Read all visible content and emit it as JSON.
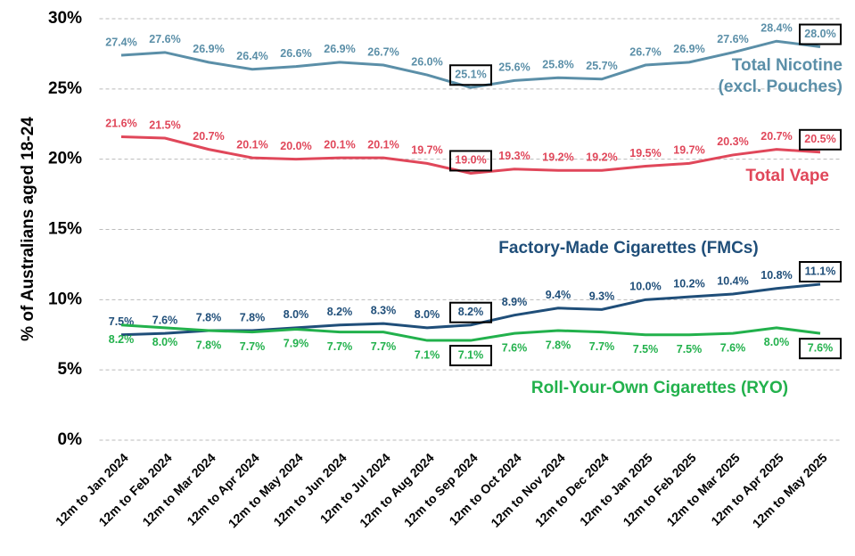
{
  "chart_data": {
    "type": "line",
    "ylabel": "% of Australians aged 18-24",
    "categories": [
      "12m to Jan 2024",
      "12m to Feb 2024",
      "12m to Mar 2024",
      "12m to Apr 2024",
      "12m to May 2024",
      "12m to Jun 2024",
      "12m to Jul 2024",
      "12m to Aug 2024",
      "12m to Sep 2024",
      "12m to Oct 2024",
      "12m to Nov 2024",
      "12m to Dec 2024",
      "12m to Jan 2025",
      "12m to Feb 2025",
      "12m to Mar 2025",
      "12m to Apr 2025",
      "12m to May 2025"
    ],
    "series": [
      {
        "name": "Total Nicotine (excl. Pouches)",
        "color": "#5b8fa8",
        "values": [
          27.4,
          27.6,
          26.9,
          26.4,
          26.6,
          26.9,
          26.7,
          26.0,
          25.1,
          25.6,
          25.8,
          25.7,
          26.7,
          26.9,
          27.6,
          28.4,
          28.0
        ],
        "value_labels": [
          "27.4%",
          "27.6%",
          "26.9%",
          "26.4%",
          "26.6%",
          "26.9%",
          "26.7%",
          "26.0%",
          "25.1%",
          "25.6%",
          "25.8%",
          "25.7%",
          "26.7%",
          "26.9%",
          "27.6%",
          "28.4%",
          "28.0%"
        ]
      },
      {
        "name": "Total Vape",
        "color": "#e0475a",
        "values": [
          21.6,
          21.5,
          20.7,
          20.1,
          20.0,
          20.1,
          20.1,
          19.7,
          19.0,
          19.3,
          19.2,
          19.2,
          19.5,
          19.7,
          20.3,
          20.7,
          20.5
        ],
        "value_labels": [
          "21.6%",
          "21.5%",
          "20.7%",
          "20.1%",
          "20.0%",
          "20.1%",
          "20.1%",
          "19.7%",
          "19.0%",
          "19.3%",
          "19.2%",
          "19.2%",
          "19.5%",
          "19.7%",
          "20.3%",
          "20.7%",
          "20.5%"
        ]
      },
      {
        "name": "Factory-Made Cigarettes (FMCs)",
        "color": "#1f4e79",
        "values": [
          7.5,
          7.6,
          7.8,
          7.8,
          8.0,
          8.2,
          8.3,
          8.0,
          8.2,
          8.9,
          9.4,
          9.3,
          10.0,
          10.2,
          10.4,
          10.8,
          11.1
        ],
        "value_labels": [
          "7.5%",
          "7.6%",
          "7.8%",
          "7.8%",
          "8.0%",
          "8.2%",
          "8.3%",
          "8.0%",
          "8.2%",
          "8.9%",
          "9.4%",
          "9.3%",
          "10.0%",
          "10.2%",
          "10.4%",
          "10.8%",
          "11.1%"
        ]
      },
      {
        "name": "Roll-Your-Own Cigarettes (RYO)",
        "color": "#22b14c",
        "values": [
          8.2,
          8.0,
          7.8,
          7.7,
          7.9,
          7.7,
          7.7,
          7.1,
          7.1,
          7.6,
          7.8,
          7.7,
          7.5,
          7.5,
          7.6,
          8.0,
          7.6
        ],
        "value_labels": [
          "8.2%",
          "8.0%",
          "7.8%",
          "7.7%",
          "7.9%",
          "7.7%",
          "7.7%",
          "7.1%",
          "7.1%",
          "7.6%",
          "7.8%",
          "7.7%",
          "7.5%",
          "7.5%",
          "7.6%",
          "8.0%",
          "7.6%"
        ]
      }
    ],
    "ylim": [
      0,
      30
    ],
    "yticks": [
      {
        "value": 0,
        "label": "0%"
      },
      {
        "value": 5,
        "label": "5%"
      },
      {
        "value": 10,
        "label": "10%"
      },
      {
        "value": 15,
        "label": "15%"
      },
      {
        "value": 20,
        "label": "20%"
      },
      {
        "value": 25,
        "label": "25%"
      },
      {
        "value": 30,
        "label": "30%"
      }
    ],
    "grid": true
  }
}
